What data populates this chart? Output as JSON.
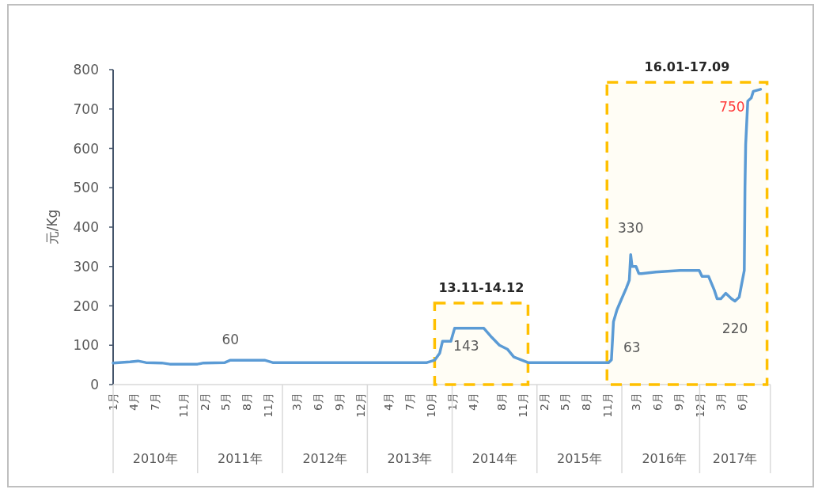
{
  "chart_data": {
    "type": "line",
    "ylabel": "元/Kg",
    "xlim": [
      "2010-01-01",
      "2017-10-01"
    ],
    "xticks": [
      {
        "value": "2010-01-01",
        "label": "1月"
      },
      {
        "value": "2010-04-01",
        "label": "4月"
      },
      {
        "value": "2010-07-01",
        "label": "7月"
      },
      {
        "value": "2010-11-01",
        "label": "11月"
      },
      {
        "value": "2011-02-01",
        "label": "2月"
      },
      {
        "value": "2011-05-01",
        "label": "5月"
      },
      {
        "value": "2011-08-01",
        "label": "8月"
      },
      {
        "value": "2011-11-01",
        "label": "11月"
      },
      {
        "value": "2012-03-01",
        "label": "3月"
      },
      {
        "value": "2012-06-01",
        "label": "6月"
      },
      {
        "value": "2012-09-01",
        "label": "9月"
      },
      {
        "value": "2012-12-01",
        "label": "12月"
      },
      {
        "value": "2013-04-01",
        "label": "4月"
      },
      {
        "value": "2013-07-01",
        "label": "7月"
      },
      {
        "value": "2013-10-01",
        "label": "10月"
      },
      {
        "value": "2014-01-01",
        "label": "1月"
      },
      {
        "value": "2014-04-01",
        "label": "4月"
      },
      {
        "value": "2014-08-01",
        "label": "8月"
      },
      {
        "value": "2014-11-01",
        "label": "11月"
      },
      {
        "value": "2015-02-01",
        "label": "2月"
      },
      {
        "value": "2015-05-01",
        "label": "5月"
      },
      {
        "value": "2015-08-01",
        "label": "8月"
      },
      {
        "value": "2015-11-01",
        "label": "11月"
      },
      {
        "value": "2016-03-01",
        "label": "3月"
      },
      {
        "value": "2016-06-01",
        "label": "6月"
      },
      {
        "value": "2016-09-01",
        "label": "9月"
      },
      {
        "value": "2016-12-01",
        "label": "12月"
      },
      {
        "value": "2017-03-01",
        "label": "3月"
      },
      {
        "value": "2017-06-01",
        "label": "6月"
      }
    ],
    "x2lim": [
      "2010-01-01",
      "2017-10-01"
    ],
    "x2ticks": [
      {
        "value": "2010-07-01",
        "label": "2010年"
      },
      {
        "value": "2011-07-01",
        "label": "2011年"
      },
      {
        "value": "2012-07-01",
        "label": "2012年"
      },
      {
        "value": "2013-07-01",
        "label": "2013年"
      },
      {
        "value": "2014-07-01",
        "label": "2014年"
      },
      {
        "value": "2015-07-01",
        "label": "2015年"
      },
      {
        "value": "2016-07-01",
        "label": "2016年"
      },
      {
        "value": "2017-05-01",
        "label": "2017年"
      }
    ],
    "ylim": [
      0,
      800
    ],
    "yticks": [
      0,
      100,
      200,
      300,
      400,
      500,
      600,
      700,
      800
    ],
    "grid": false,
    "series": [
      {
        "color": "#5b9bd5",
        "x": [
          "2010-01-01",
          "2010-03-15",
          "2010-04-18",
          "2010-05-22",
          "2010-07-29",
          "2010-09-02",
          "2010-12-30",
          "2011-01-27",
          "2011-04-27",
          "2011-05-21",
          "2011-10-15",
          "2011-11-19",
          "2013-09-13",
          "2013-10-16",
          "2013-11-07",
          "2013-11-19",
          "2013-12-25",
          "2014-01-10",
          "2014-05-16",
          "2014-06-19",
          "2014-07-22",
          "2014-08-25",
          "2014-09-22",
          "2014-11-22",
          "2015-11-04",
          "2015-11-16",
          "2015-11-25",
          "2015-12-10",
          "2015-12-28",
          "2016-01-19",
          "2016-02-01",
          "2016-02-07",
          "2016-02-13",
          "2016-03-01",
          "2016-03-13",
          "2016-03-25",
          "2016-05-25",
          "2016-09-07",
          "2016-11-28",
          "2016-12-10",
          "2017-01-07",
          "2017-02-01",
          "2017-02-13",
          "2017-03-01",
          "2017-03-22",
          "2017-04-16",
          "2017-05-01",
          "2017-05-19",
          "2017-05-28",
          "2017-06-10",
          "2017-06-13",
          "2017-06-16",
          "2017-06-25",
          "2017-07-10",
          "2017-07-19",
          "2017-08-19"
        ],
        "values": [
          55,
          58,
          60,
          56,
          55,
          52,
          52,
          55,
          56,
          62,
          62,
          56,
          56,
          62,
          80,
          110,
          110,
          143,
          143,
          120,
          100,
          90,
          70,
          56,
          56,
          63,
          160,
          190,
          215,
          245,
          265,
          330,
          300,
          300,
          282,
          282,
          286,
          290,
          290,
          275,
          275,
          240,
          218,
          218,
          232,
          218,
          212,
          222,
          250,
          290,
          500,
          610,
          720,
          728,
          745,
          750
        ]
      }
    ],
    "annotations": [
      {
        "text": "60",
        "x": "2011-05-21",
        "y": 62
      },
      {
        "text": "143",
        "x": "2014-03-01",
        "y": 143
      },
      {
        "text": "63",
        "x": "2015-11-16",
        "y": 63
      },
      {
        "text": "330",
        "x": "2016-02-07",
        "y": 330
      },
      {
        "text": "220",
        "x": "2017-05-01",
        "y": 212
      },
      {
        "text": "750",
        "x": "2017-08-19",
        "y": 750
      }
    ],
    "bands": [
      {
        "axis": "x",
        "from": "2013-10-16",
        "to": "2014-11-22",
        "label": "13.11-14.12",
        "color": "#ffc000"
      },
      {
        "axis": "x",
        "from": "2015-10-28",
        "to": "2017-09-16",
        "label": "16.01-17.09",
        "color": "#ffc000"
      }
    ]
  }
}
